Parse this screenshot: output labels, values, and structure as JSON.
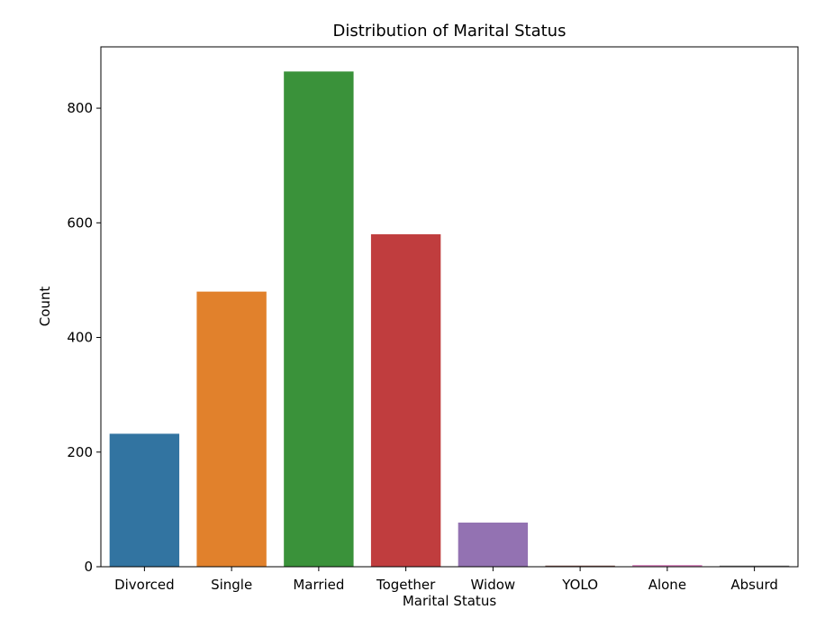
{
  "chart_data": {
    "type": "bar",
    "title": "Distribution of Marital Status",
    "xlabel": "Marital Status",
    "ylabel": "Count",
    "categories": [
      "Divorced",
      "Single",
      "Married",
      "Together",
      "Widow",
      "YOLO",
      "Alone",
      "Absurd"
    ],
    "values": [
      232,
      480,
      864,
      580,
      77,
      2,
      3,
      2
    ],
    "colors": [
      "#3274a1",
      "#e1812c",
      "#3a923a",
      "#c03d3e",
      "#9372b2",
      "#845b53",
      "#d684bd",
      "#7f7f7f"
    ],
    "ylim": [
      0,
      907
    ],
    "yticks": [
      0,
      200,
      400,
      600,
      800
    ],
    "grid": false,
    "legend": "none"
  }
}
